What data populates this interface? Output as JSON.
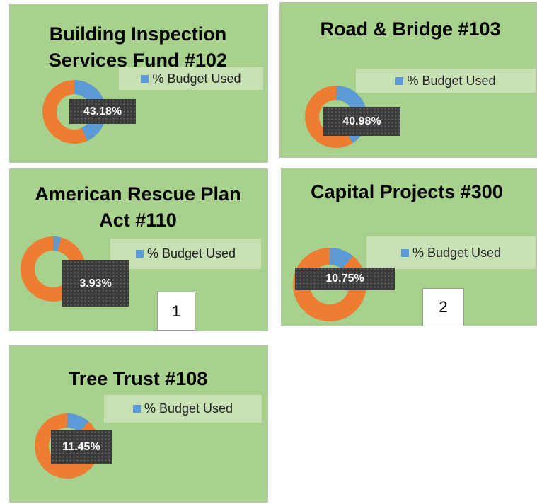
{
  "chart_data": [
    {
      "type": "donut",
      "title": "Building Inspection Services Fund #102",
      "series": [
        {
          "name": "% Budget Used",
          "color": "#5b9bd5",
          "values": [
            43.18
          ],
          "value_labels": [
            "43.18%"
          ]
        }
      ],
      "rest_color": "#ed7d31"
    },
    {
      "type": "donut",
      "title": "Road & Bridge #103",
      "series": [
        {
          "name": "% Budget Used",
          "color": "#5b9bd5",
          "values": [
            40.98
          ],
          "value_labels": [
            "40.98%"
          ]
        }
      ],
      "rest_color": "#ed7d31"
    },
    {
      "type": "donut",
      "title": "American Rescue Plan Act #110",
      "series": [
        {
          "name": "% Budget Used",
          "color": "#5b9bd5",
          "values": [
            3.93
          ],
          "value_labels": [
            "3.93%"
          ]
        }
      ],
      "rest_color": "#ed7d31"
    },
    {
      "type": "donut",
      "title": "Capital Projects #300",
      "series": [
        {
          "name": "% Budget Used",
          "color": "#5b9bd5",
          "values": [
            10.75
          ],
          "value_labels": [
            "10.75%"
          ]
        }
      ],
      "rest_color": "#ed7d31"
    },
    {
      "type": "donut",
      "title": "Tree Trust #108",
      "series": [
        {
          "name": "% Budget Used",
          "color": "#5b9bd5",
          "values": [
            11.45
          ],
          "value_labels": [
            "11.45%"
          ]
        }
      ],
      "rest_color": "#ed7d31"
    }
  ],
  "page_labels": [
    "1",
    "2"
  ]
}
